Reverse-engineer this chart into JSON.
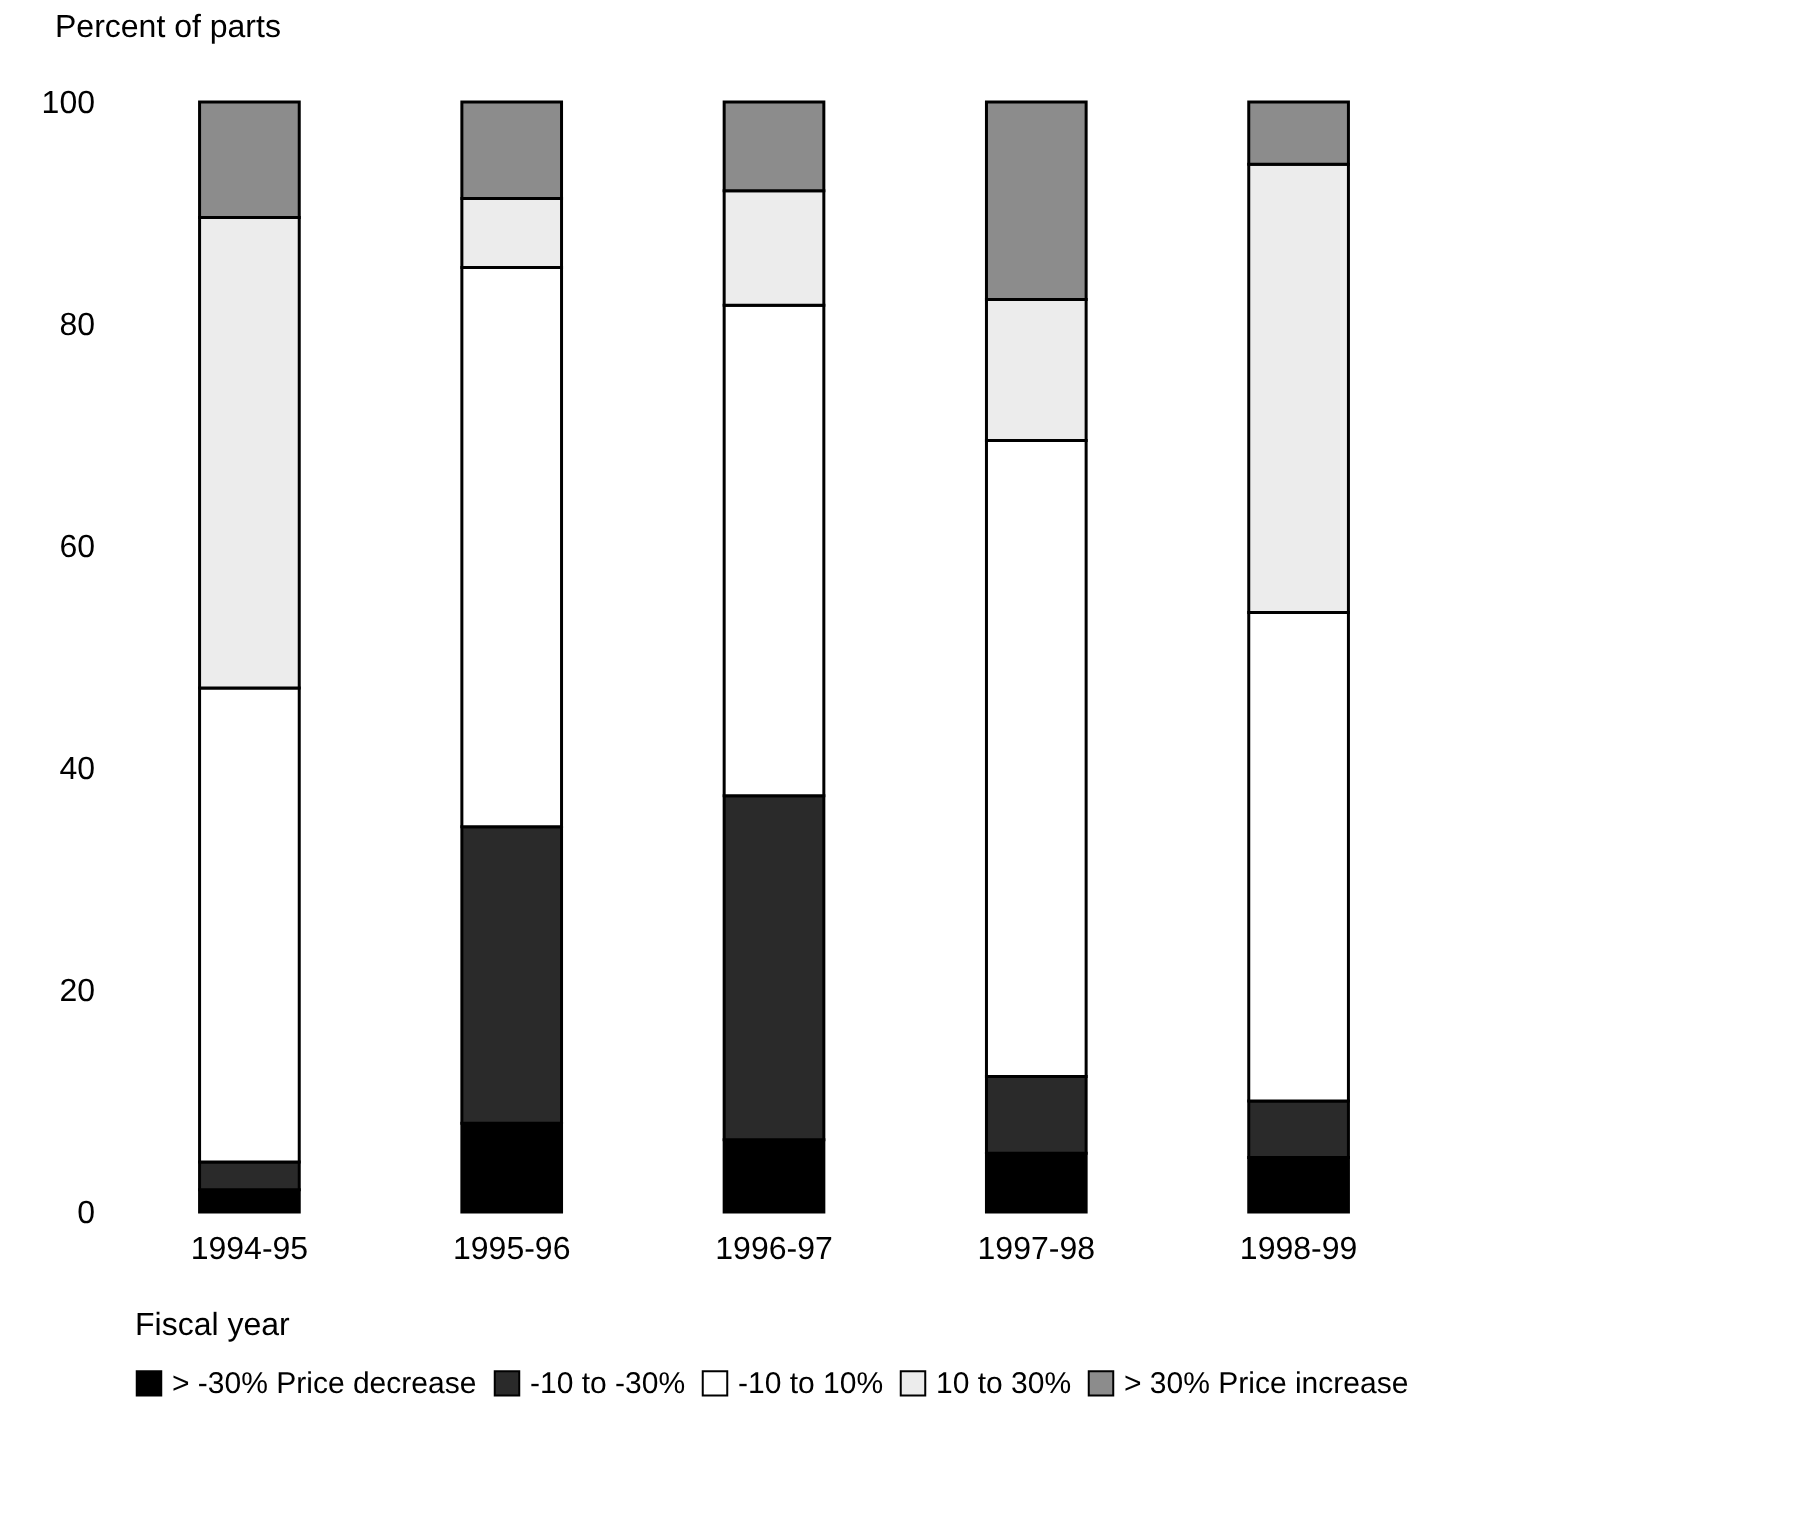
{
  "chart_data": {
    "type": "bar",
    "stacked": true,
    "ylabel": "Percent of parts",
    "xlabel": "Fiscal year",
    "categories": [
      "1994-95",
      "1995-96",
      "1996-97",
      "1997-98",
      "1998-99"
    ],
    "series": [
      {
        "name": "> -30% Price decrease",
        "color": "#000000",
        "values": [
          2,
          8,
          6.5,
          5.3,
          4.9
        ]
      },
      {
        "name": "-10 to -30%",
        "color": "#2a2a2a",
        "values": [
          2.5,
          26.7,
          31,
          6.9,
          5.1
        ]
      },
      {
        "name": "-10 to 10%",
        "color": "#ffffff",
        "values": [
          42.7,
          50.4,
          44.2,
          57.3,
          44
        ]
      },
      {
        "name": "10 to 30%",
        "color": "#ececec",
        "values": [
          42.4,
          6.2,
          10.3,
          12.7,
          40.4
        ]
      },
      {
        "name": "> 30% Price increase",
        "color": "#8c8c8c",
        "values": [
          10.4,
          8.7,
          8,
          17.8,
          5.6
        ]
      }
    ],
    "ylim": [
      0,
      100
    ],
    "yticks": [
      0,
      20,
      40,
      60,
      80,
      100
    ],
    "grid": false,
    "legend": "bottom"
  }
}
